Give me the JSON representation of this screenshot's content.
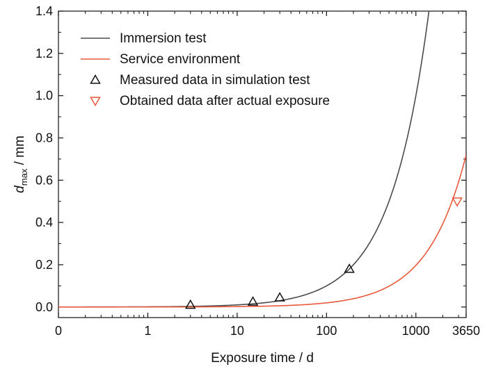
{
  "chart_data": {
    "type": "line",
    "x_scale": "log",
    "xlim": [
      0.1,
      3650
    ],
    "ylim": [
      -0.05,
      1.4
    ],
    "xlabel": "Exposure time / d",
    "ylabel": {
      "prefix": "d",
      "subscript": "max",
      "suffix": " / mm"
    },
    "x_ticks": [
      {
        "value": 0.1,
        "label": "0"
      },
      {
        "value": 1,
        "label": "1"
      },
      {
        "value": 10,
        "label": "10"
      },
      {
        "value": 100,
        "label": "100"
      },
      {
        "value": 1000,
        "label": "1000"
      },
      {
        "value": 3650,
        "label": "3650"
      }
    ],
    "y_ticks": [
      {
        "value": 0.0,
        "label": "0.0"
      },
      {
        "value": 0.2,
        "label": "0.2"
      },
      {
        "value": 0.4,
        "label": "0.4"
      },
      {
        "value": 0.6,
        "label": "0.6"
      },
      {
        "value": 0.8,
        "label": "0.8"
      },
      {
        "value": 1.0,
        "label": "1.0"
      },
      {
        "value": 1.2,
        "label": "1.2"
      },
      {
        "value": 1.4,
        "label": "1.4"
      }
    ],
    "grid": false,
    "legend_position": "top-left",
    "series": [
      {
        "name": "Immersion test",
        "kind": "line",
        "color": "#4a4a4a",
        "model": "linear",
        "coef": 0.001
      },
      {
        "name": "Service environment",
        "kind": "line",
        "color": "#e8583a",
        "model": "linear",
        "coef": 0.000197
      },
      {
        "name": "Measured data in simulation test",
        "kind": "scatter",
        "marker": "triangle-up",
        "color": "#111111",
        "points": [
          {
            "x": 3,
            "y": 0.01
          },
          {
            "x": 15,
            "y": 0.025
          },
          {
            "x": 30,
            "y": 0.045
          },
          {
            "x": 180,
            "y": 0.18
          }
        ]
      },
      {
        "name": "Obtained data after actual exposure",
        "kind": "scatter",
        "marker": "triangle-down",
        "color": "#e8583a",
        "points": [
          {
            "x": 2900,
            "y": 0.5
          }
        ]
      }
    ]
  }
}
